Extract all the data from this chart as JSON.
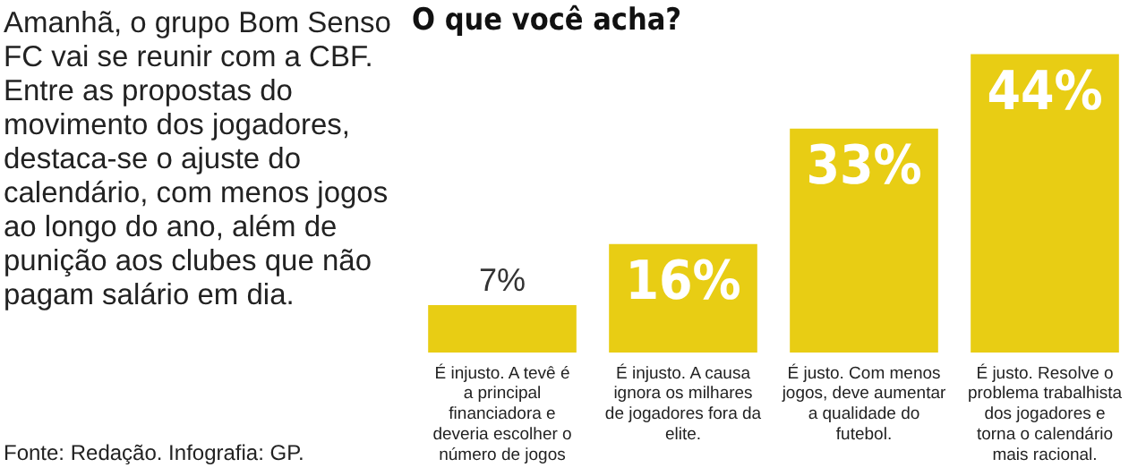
{
  "chart_data": {
    "type": "bar",
    "title": "O que você acha?",
    "categories": [
      "É injusto. A tevê é a principal financiadora e deveria escolher o número de jogos",
      "É injusto. A causa ignora os milhares de jogadores fora da elite.",
      "É justo. Com menos jogos, deve aumentar a qualidade do futebol.",
      "É justo. Resolve o problema trabalhista dos jogadores e torna o calendário mais racional."
    ],
    "values": [
      7,
      16,
      33,
      44
    ],
    "color": "#e8cd14",
    "value_labels": [
      "7%",
      "16%",
      "33%",
      "44%"
    ],
    "annotations": [
      "Amanhã, o grupo Bom Senso FC vai se reunir com a CBF. Entre as propostas do movimento dos jogadores, destaca-se o ajuste do calendário, com menos jogos ao longo do ano, além de punição aos clubes que não pagam salário em dia.",
      "Fonte: Redação. Infografia: GP."
    ],
    "legend": false,
    "grid": false,
    "tick_labels": "x"
  }
}
